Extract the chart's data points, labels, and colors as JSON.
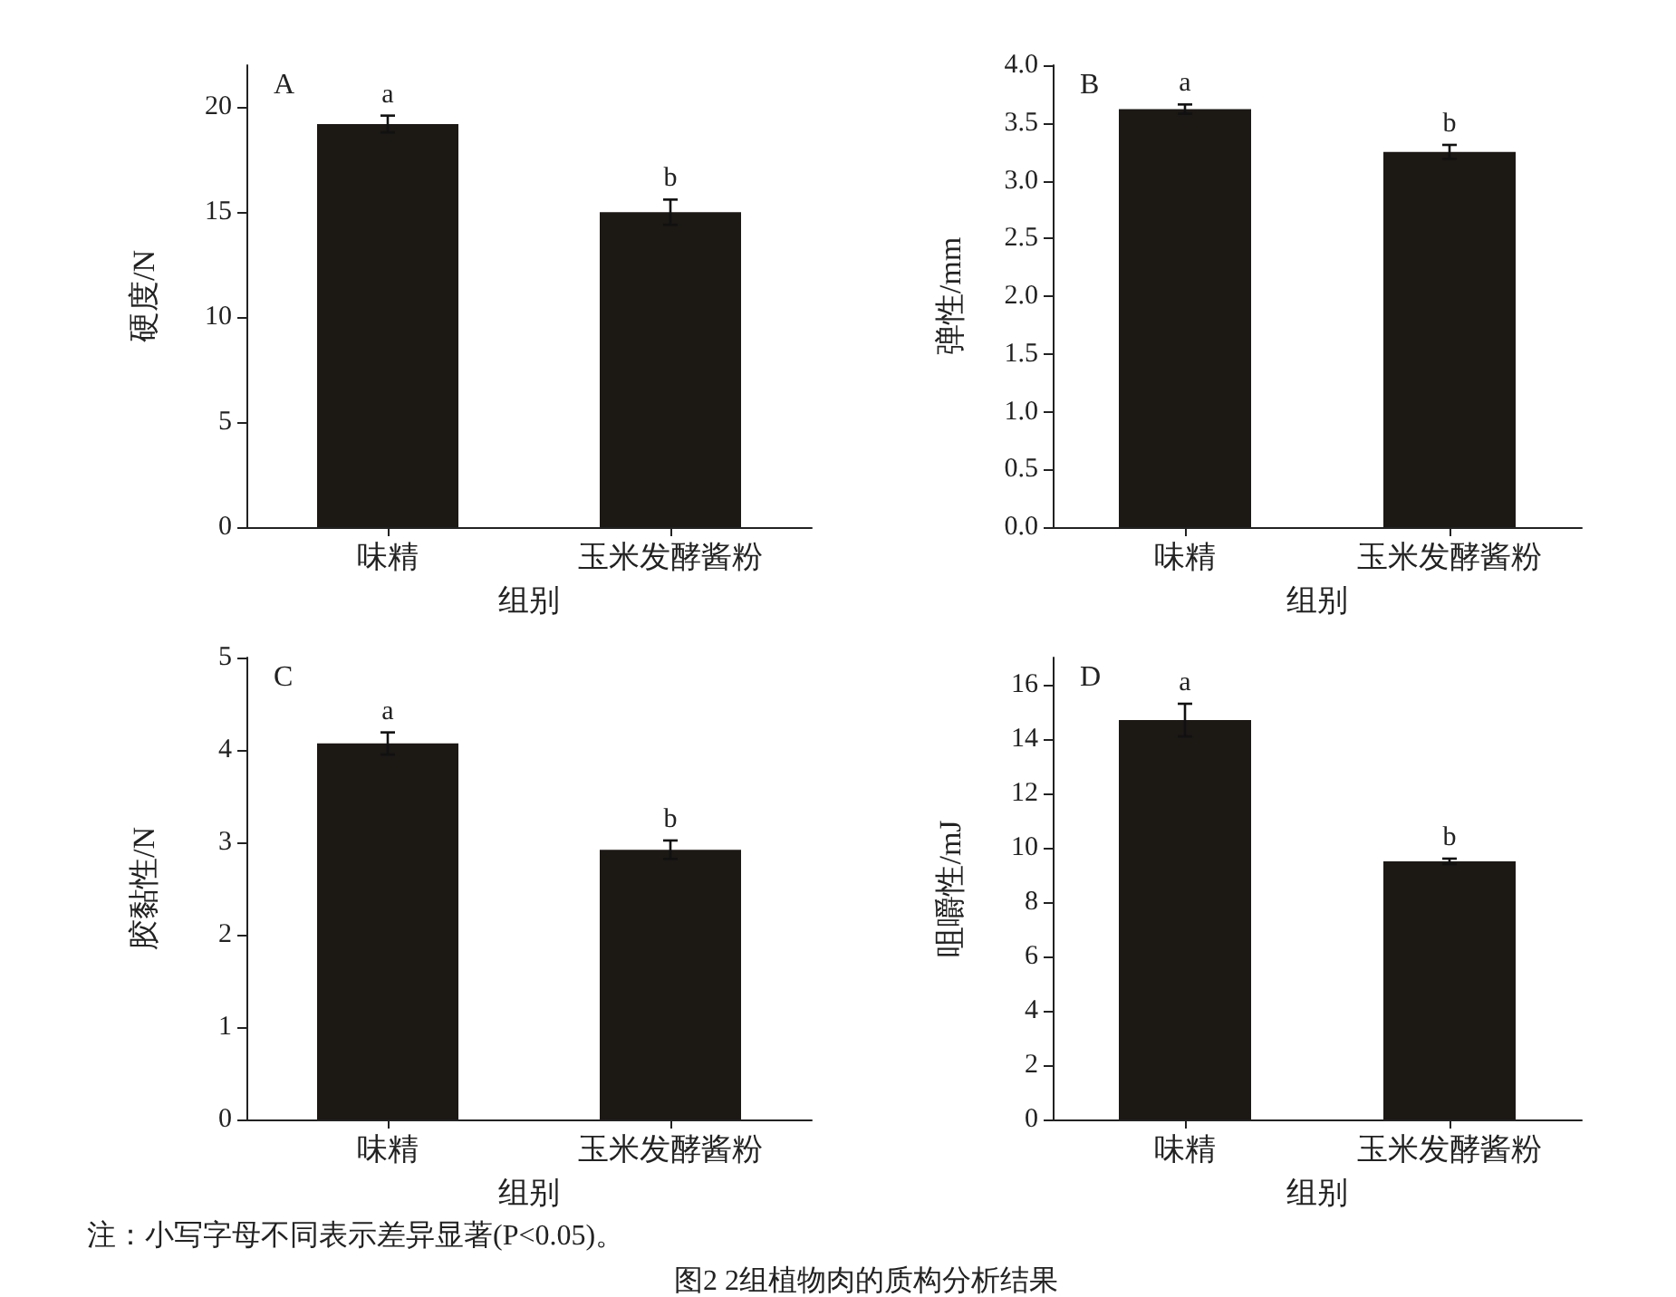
{
  "chart_data": [
    {
      "type": "bar",
      "title": "A",
      "xlabel": "组别",
      "ylabel": "硬度/N",
      "categories": [
        "味精",
        "玉米发酵酱粉"
      ],
      "values": [
        19.2,
        15.0
      ],
      "errors": [
        0.4,
        0.6
      ],
      "color": "#1c1814",
      "ylim": [
        0,
        22
      ],
      "yticks": [
        0,
        5,
        10,
        15,
        20
      ],
      "grid": false,
      "annotations": [
        "a",
        "b"
      ]
    },
    {
      "type": "bar",
      "title": "B",
      "xlabel": "组别",
      "ylabel": "弹性/mm",
      "categories": [
        "味精",
        "玉米发酵酱粉"
      ],
      "values": [
        3.62,
        3.25
      ],
      "errors": [
        0.04,
        0.06
      ],
      "color": "#1c1814",
      "ylim": [
        0,
        4
      ],
      "yticks": [
        {
          "value": 0,
          "label": "0.0"
        },
        {
          "value": 0.5,
          "label": "0.5"
        },
        {
          "value": 1,
          "label": "1.0"
        },
        {
          "value": 1.5,
          "label": "1.5"
        },
        {
          "value": 2,
          "label": "2.0"
        },
        {
          "value": 2.5,
          "label": "2.5"
        },
        {
          "value": 3,
          "label": "3.0"
        },
        {
          "value": 3.5,
          "label": "3.5"
        },
        {
          "value": 4,
          "label": "4.0"
        }
      ],
      "grid": false,
      "annotations": [
        "a",
        "b"
      ]
    },
    {
      "type": "bar",
      "title": "C",
      "xlabel": "组别",
      "ylabel": "胶黏性/N",
      "categories": [
        "味精",
        "玉米发酵酱粉"
      ],
      "values": [
        4.07,
        2.92
      ],
      "errors": [
        0.12,
        0.1
      ],
      "color": "#1c1814",
      "ylim": [
        0,
        5
      ],
      "yticks": [
        0,
        1,
        2,
        3,
        4,
        5
      ],
      "grid": false,
      "annotations": [
        "a",
        "b"
      ]
    },
    {
      "type": "bar",
      "title": "D",
      "xlabel": "组别",
      "ylabel": "咀嚼性/mJ",
      "categories": [
        "味精",
        "玉米发酵酱粉"
      ],
      "values": [
        14.7,
        9.5
      ],
      "errors": [
        0.6,
        0.1
      ],
      "color": "#1c1814",
      "ylim": [
        0,
        17
      ],
      "yticks": [
        0,
        2,
        4,
        6,
        8,
        10,
        12,
        14,
        16
      ],
      "grid": false,
      "annotations": [
        "a",
        "b"
      ]
    },
    {
      "type": "other",
      "annotations": [
        "注：小写字母不同表示差异显著(P<0.05)。",
        "图2  2组植物肉的质构分析结果"
      ]
    }
  ]
}
